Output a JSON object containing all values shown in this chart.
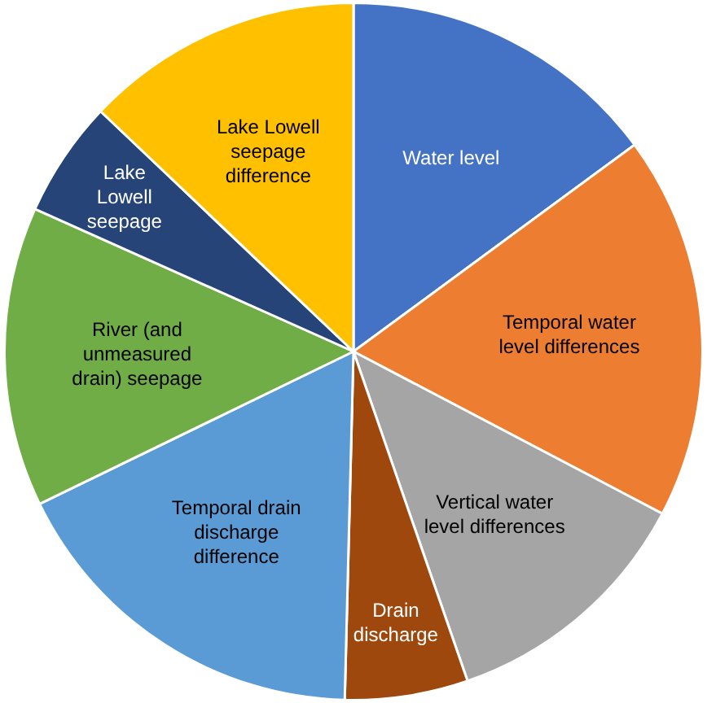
{
  "chart_data": {
    "type": "pie",
    "categories": [
      "Water level",
      "Temporal water level differences",
      "Vertical water level differences",
      "Drain discharge",
      "Temporal drain discharge difference",
      "River (and unmeasured drain) seepage",
      "Lake Lowell seepage",
      "Lake Lowell seepage difference"
    ],
    "values": [
      14.9,
      17.8,
      12,
      5.7,
      17.4,
      13.9,
      5.4,
      12.9
    ],
    "colors": [
      "#4472c4",
      "#ed7d31",
      "#a5a5a5",
      "#9e480e",
      "#5b9bd5",
      "#70ad47",
      "#264478",
      "#ffc000"
    ],
    "legend": false
  }
}
